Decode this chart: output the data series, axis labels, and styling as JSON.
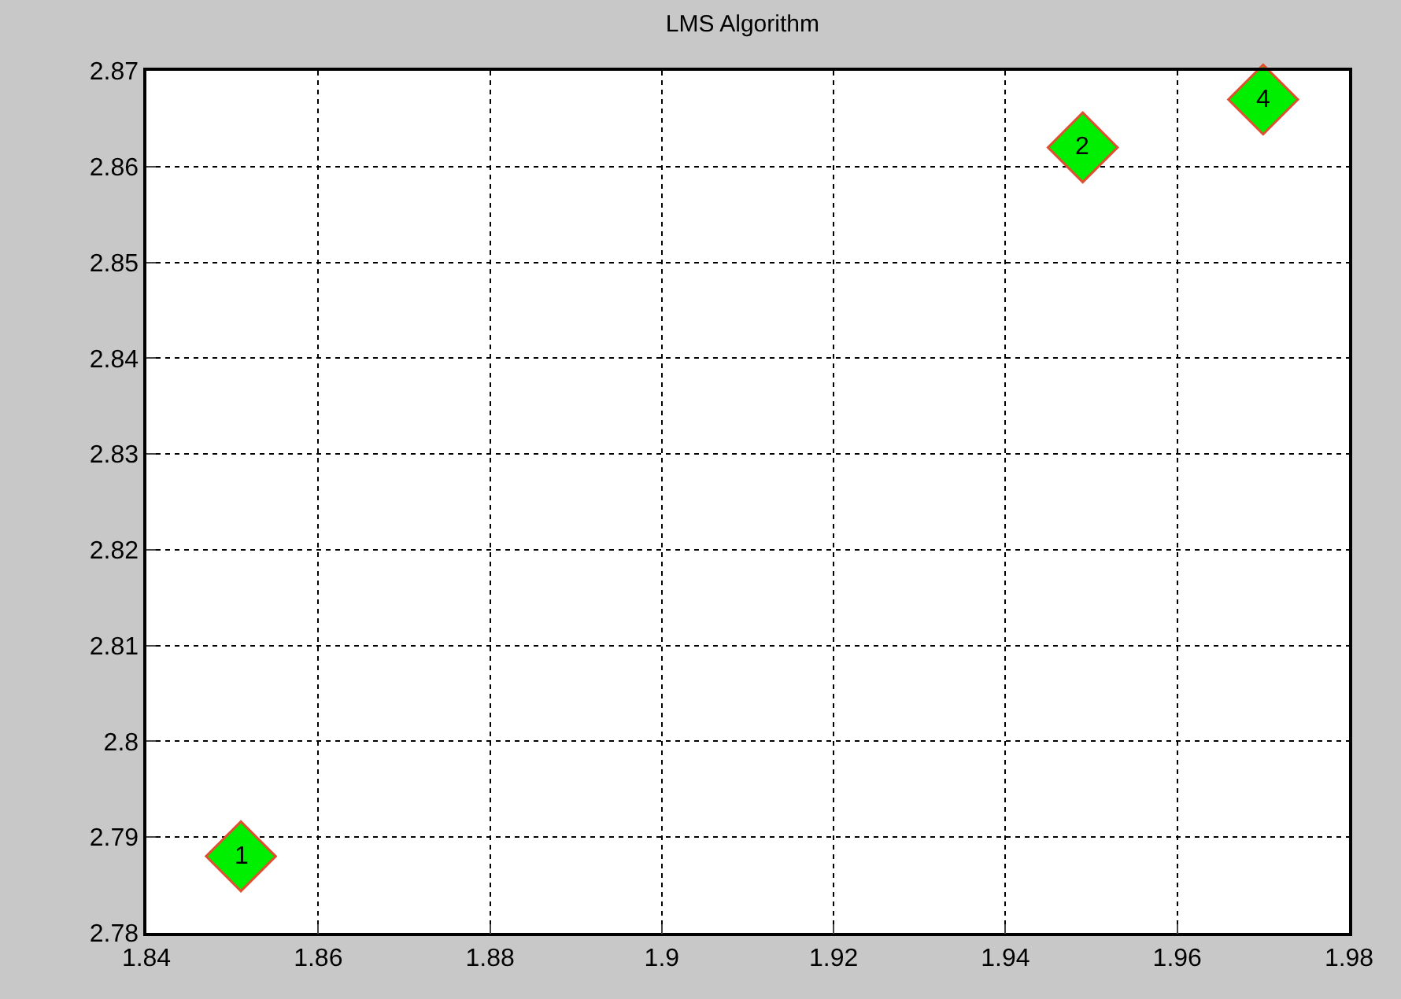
{
  "chart_data": {
    "type": "scatter",
    "title": "LMS Algorithm",
    "x": [
      1.851,
      1.949,
      1.97
    ],
    "series": [
      {
        "color": "#00ee00",
        "values": [
          2.788,
          2.862,
          2.867
        ]
      }
    ],
    "annotations": [
      {
        "text": "1",
        "x": 1.851,
        "y": 2.788
      },
      {
        "text": "2",
        "x": 1.949,
        "y": 2.862
      },
      {
        "text": "4",
        "x": 1.97,
        "y": 2.867
      }
    ],
    "xlim": [
      1.84,
      1.98
    ],
    "xticks": [
      1.84,
      1.86,
      1.88,
      1.9,
      1.92,
      1.94,
      1.96,
      1.98
    ],
    "ylim": [
      2.78,
      2.87
    ],
    "yticks": [
      2.78,
      2.79,
      2.8,
      2.81,
      2.82,
      2.83,
      2.84,
      2.85,
      2.86,
      2.87
    ],
    "grid": true,
    "marker": "diamond"
  }
}
